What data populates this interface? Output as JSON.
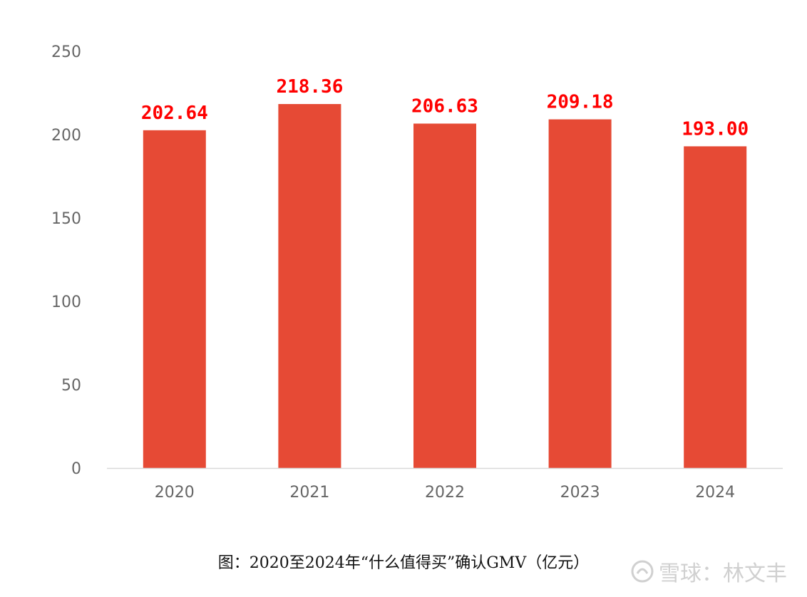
{
  "chart_data": {
    "type": "bar",
    "categories": [
      "2020",
      "2021",
      "2022",
      "2023",
      "2024"
    ],
    "values": [
      202.64,
      218.36,
      206.63,
      209.18,
      193.0
    ],
    "data_labels": [
      "202.64",
      "218.36",
      "206.63",
      "209.18",
      "193.00"
    ],
    "title": "",
    "xlabel": "",
    "ylabel": "",
    "ylim": [
      0,
      250
    ],
    "yticks": [
      "0",
      "50",
      "100",
      "150",
      "200",
      "250"
    ],
    "ytick_values": [
      0,
      50,
      100,
      150,
      200,
      250
    ],
    "grid": false,
    "legend": "none"
  },
  "colors": {
    "bar": "#e64a35",
    "data_label": "#ff0000",
    "axis": "#d9d9d9",
    "tick": "#666666"
  },
  "caption": "图：2020至2024年“什么值得买”确认GMV（亿元）",
  "watermark": "雪球：林文丰"
}
